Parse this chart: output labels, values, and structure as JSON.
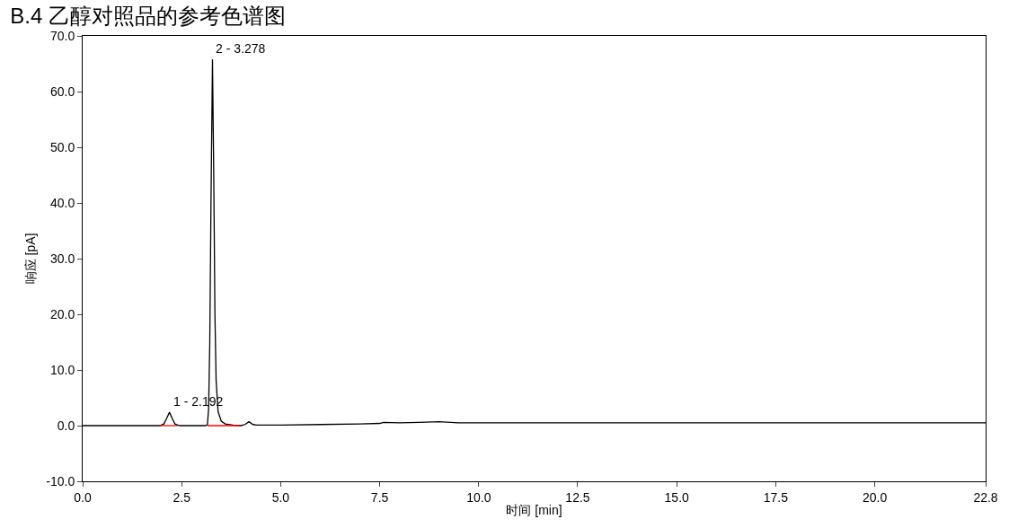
{
  "chart_data": {
    "type": "line",
    "title": "B.4 乙醇对照品的参考色谱图",
    "xlabel": "时间 [min]",
    "ylabel": "响应 [pA]",
    "series": [
      {
        "color": "#000000",
        "x": [
          0,
          0.5,
          1.0,
          1.5,
          1.95,
          2.05,
          2.12,
          2.192,
          2.26,
          2.33,
          2.45,
          2.8,
          3.1,
          3.15,
          3.18,
          3.21,
          3.24,
          3.278,
          3.31,
          3.34,
          3.37,
          3.42,
          3.5,
          3.6,
          3.8,
          4.0,
          4.1,
          4.2,
          4.3,
          4.4,
          5.0,
          6.0,
          7.0,
          7.5,
          7.6,
          8.0,
          8.5,
          9.0,
          9.5,
          10.0,
          11.0,
          12.5,
          15.0,
          17.5,
          20.0,
          22.8
        ],
        "values": [
          0,
          0,
          0,
          0,
          0,
          0.3,
          1.3,
          2.4,
          1.3,
          0.3,
          0,
          0,
          0,
          0.2,
          3,
          15,
          40,
          65.8,
          45,
          20,
          8,
          2.5,
          0.8,
          0.3,
          0.1,
          0,
          0.2,
          0.7,
          0.2,
          0.1,
          0.1,
          0.2,
          0.3,
          0.4,
          0.6,
          0.5,
          0.6,
          0.7,
          0.5,
          0.5,
          0.5,
          0.5,
          0.5,
          0.5,
          0.5,
          0.5
        ]
      },
      {
        "color": "#ff0000",
        "x": [
          1.95,
          2.4
        ],
        "values": [
          0,
          0
        ]
      },
      {
        "color": "#ff0000",
        "x": [
          3.15,
          3.95
        ],
        "values": [
          0,
          0
        ]
      }
    ],
    "annotations": [
      {
        "text": "1 - 2.192",
        "x": 2.192,
        "y": 2.4
      },
      {
        "text": "2 - 3.278",
        "x": 3.278,
        "y": 65.8
      }
    ],
    "xlim": [
      0,
      22.8
    ],
    "xticks": [
      {
        "value": 0,
        "label": "0.0"
      },
      2.5,
      {
        "value": 5,
        "label": "5.0"
      },
      7.5,
      {
        "value": 10,
        "label": "10.0"
      },
      12.5,
      {
        "value": 15,
        "label": "15.0"
      },
      17.5,
      {
        "value": 20,
        "label": "20.0"
      },
      22.8
    ],
    "ylim": [
      -10,
      70
    ],
    "yticks": [
      {
        "value": -10,
        "label": "-10.0"
      },
      {
        "value": 0,
        "label": "0.0"
      },
      {
        "value": 10,
        "label": "10.0"
      },
      {
        "value": 20,
        "label": "20.0"
      },
      {
        "value": 30,
        "label": "30.0"
      },
      {
        "value": 40,
        "label": "40.0"
      },
      {
        "value": 50,
        "label": "50.0"
      },
      {
        "value": 60,
        "label": "60.0"
      },
      {
        "value": 70,
        "label": "70.0"
      }
    ]
  }
}
